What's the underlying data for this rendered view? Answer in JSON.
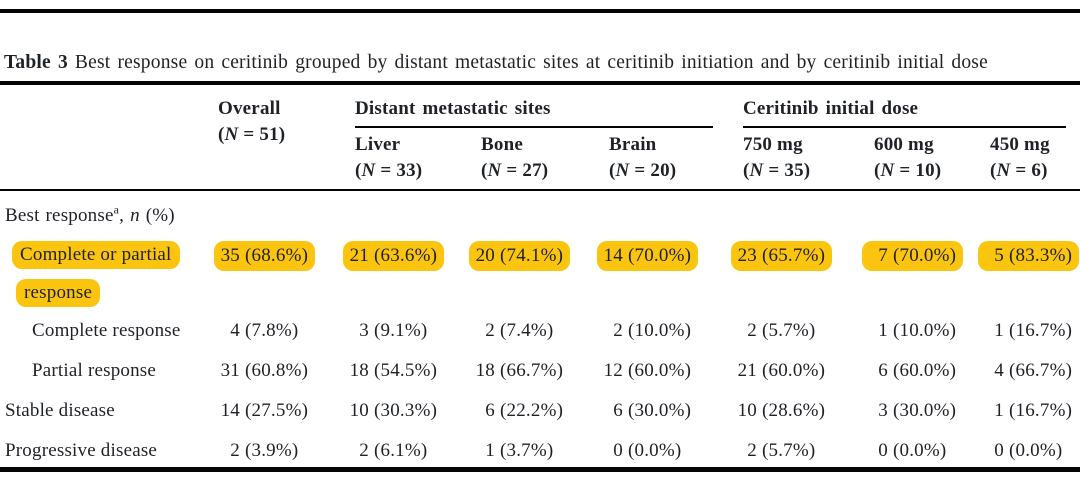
{
  "highlight_color": "#FBC40F",
  "title": {
    "label": "Table 3",
    "text": "Best response on ceritinib grouped by distant metastatic sites at ceritinib initiation and by ceritinib initial dose"
  },
  "table": {
    "overall": {
      "name": "Overall",
      "n": "(N = 51)"
    },
    "groups": [
      {
        "name": "Distant metastatic sites",
        "columns": [
          {
            "name": "Liver",
            "n": "(N = 33)"
          },
          {
            "name": "Bone",
            "n": "(N = 27)"
          },
          {
            "name": "Brain",
            "n": "(N = 20)"
          }
        ]
      },
      {
        "name": "Ceritinib initial dose",
        "columns": [
          {
            "name": "750 mg",
            "n": "(N = 35)"
          },
          {
            "name": "600 mg",
            "n": "(N = 10)"
          },
          {
            "name": "450 mg",
            "n": "(N = 6)"
          }
        ]
      }
    ],
    "section": {
      "label": "Best response",
      "sup": "a",
      "mid": ", ",
      "italic": "n",
      "end": " (%)"
    },
    "rows": [
      {
        "label": "Complete or partial response",
        "label_lines": [
          "Complete or partial",
          "response"
        ],
        "indent": 1,
        "highlighted": true,
        "values": [
          "35 (68.6%)",
          "21 (63.6%)",
          "20 (74.1%)",
          "14 (70.0%)",
          "23 (65.7%)",
          "7 (70.0%)",
          "5 (83.3%)"
        ]
      },
      {
        "label": "Complete response",
        "indent": 2,
        "highlighted": false,
        "values": [
          "4 (7.8%)",
          "3 (9.1%)",
          "2 (7.4%)",
          "2 (10.0%)",
          "2 (5.7%)",
          "1 (10.0%)",
          "1 (16.7%)"
        ]
      },
      {
        "label": "Partial response",
        "indent": 2,
        "highlighted": false,
        "values": [
          "31 (60.8%)",
          "18 (54.5%)",
          "18 (66.7%)",
          "12 (60.0%)",
          "21 (60.0%)",
          "6 (60.0%)",
          "4 (66.7%)"
        ]
      },
      {
        "label": "Stable disease",
        "indent": 0,
        "highlighted": false,
        "values": [
          "14 (27.5%)",
          "10 (30.3%)",
          "6 (22.2%)",
          "6 (30.0%)",
          "10 (28.6%)",
          "3 (30.0%)",
          "1 (16.7%)"
        ]
      },
      {
        "label": "Progressive disease",
        "indent": 0,
        "highlighted": false,
        "values": [
          "2 (3.9%)",
          "2 (6.1%)",
          "1 (3.7%)",
          "0 (0.0%)",
          "2 (5.7%)",
          "0 (0.0%)",
          "0 (0.0%)"
        ]
      }
    ]
  }
}
